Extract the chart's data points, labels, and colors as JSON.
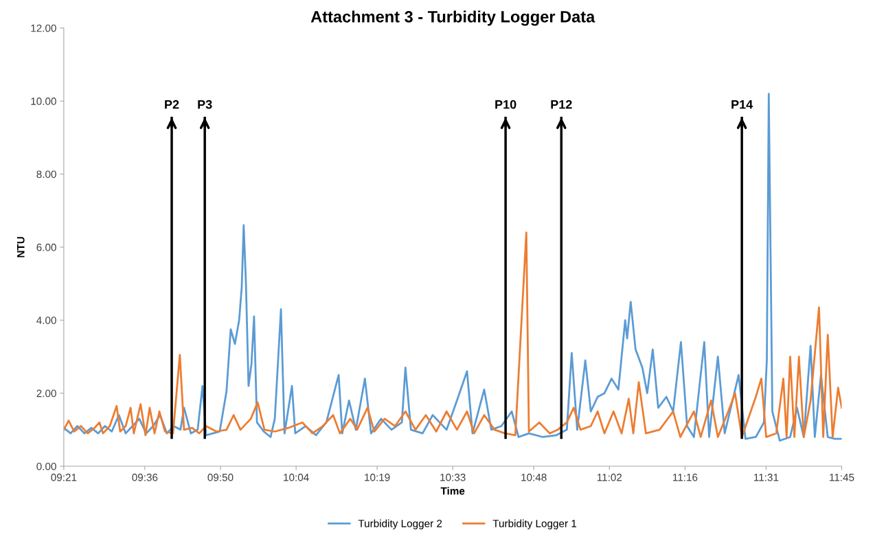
{
  "chart_data": {
    "type": "line",
    "title": "Attachment 3 - Turbidity Logger Data",
    "xlabel": "Time",
    "ylabel": "NTU",
    "xlim": [
      9.35,
      11.75
    ],
    "xticks": [
      {
        "value": 9.35,
        "label": "09:21"
      },
      {
        "value": 9.6,
        "label": "09:36"
      },
      {
        "value": 9.8333,
        "label": "09:50"
      },
      {
        "value": 10.0667,
        "label": "10:04"
      },
      {
        "value": 10.3167,
        "label": "10:19"
      },
      {
        "value": 10.55,
        "label": "10:33"
      },
      {
        "value": 10.8,
        "label": "10:48"
      },
      {
        "value": 11.0333,
        "label": "11:02"
      },
      {
        "value": 11.2667,
        "label": "11:16"
      },
      {
        "value": 11.5167,
        "label": "11:31"
      },
      {
        "value": 11.75,
        "label": "11:45"
      }
    ],
    "ylim": [
      0,
      12
    ],
    "yticks": [
      {
        "value": 0,
        "label": "0.00"
      },
      {
        "value": 2,
        "label": "2.00"
      },
      {
        "value": 4,
        "label": "4.00"
      },
      {
        "value": 6,
        "label": "6.00"
      },
      {
        "value": 8,
        "label": "8.00"
      },
      {
        "value": 10,
        "label": "10.00"
      },
      {
        "value": 12,
        "label": "12.00"
      }
    ],
    "grid": false,
    "legend": "bottom",
    "marker": "none",
    "line_style": "solid",
    "ref_lines": [
      {
        "axis": "x",
        "value": 9.683,
        "label": "P2",
        "color": "#000000"
      },
      {
        "axis": "x",
        "value": 9.785,
        "label": "P3",
        "color": "#000000"
      },
      {
        "axis": "x",
        "value": 10.713,
        "label": "P10",
        "color": "#000000"
      },
      {
        "axis": "x",
        "value": 10.885,
        "label": "P12",
        "color": "#000000"
      },
      {
        "axis": "x",
        "value": 11.442,
        "label": "P14",
        "color": "#000000"
      }
    ],
    "series": [
      {
        "name": "Turbidity Logger 2",
        "color": "#5b9bd5",
        "x": [
          9.35,
          9.371,
          9.392,
          9.414,
          9.435,
          9.456,
          9.477,
          9.498,
          9.52,
          9.541,
          9.562,
          9.583,
          9.604,
          9.626,
          9.647,
          9.668,
          9.689,
          9.71,
          9.721,
          9.742,
          9.763,
          9.778,
          9.789,
          9.81,
          9.831,
          9.852,
          9.865,
          9.878,
          9.891,
          9.899,
          9.905,
          9.912,
          9.92,
          9.929,
          9.937,
          9.946,
          9.967,
          9.988,
          10.001,
          10.02,
          10.031,
          10.054,
          10.064,
          10.096,
          10.128,
          10.16,
          10.198,
          10.209,
          10.23,
          10.251,
          10.279,
          10.298,
          10.329,
          10.361,
          10.393,
          10.404,
          10.421,
          10.457,
          10.488,
          10.531,
          10.563,
          10.594,
          10.611,
          10.647,
          10.669,
          10.7,
          10.732,
          10.753,
          10.785,
          10.828,
          10.87,
          10.902,
          10.917,
          10.934,
          10.959,
          10.976,
          10.997,
          11.018,
          11.04,
          11.061,
          11.071,
          11.082,
          11.088,
          11.099,
          11.114,
          11.135,
          11.15,
          11.167,
          11.184,
          11.209,
          11.23,
          11.254,
          11.273,
          11.294,
          11.326,
          11.341,
          11.368,
          11.389,
          11.432,
          11.453,
          11.485,
          11.51,
          11.519,
          11.525,
          11.536,
          11.559,
          11.591,
          11.612,
          11.633,
          11.654,
          11.667,
          11.686,
          11.707,
          11.729,
          11.75
        ],
        "values": [
          1.05,
          0.9,
          1.1,
          0.9,
          1.05,
          0.9,
          1.1,
          0.95,
          1.4,
          0.9,
          1.1,
          1.3,
          0.9,
          1.1,
          1.4,
          0.9,
          1.1,
          1.0,
          1.6,
          0.9,
          1.0,
          2.2,
          0.85,
          0.9,
          0.95,
          2.05,
          3.75,
          3.35,
          4.0,
          4.9,
          6.6,
          5.0,
          2.2,
          2.8,
          4.1,
          1.2,
          0.95,
          0.8,
          1.3,
          4.3,
          0.9,
          2.2,
          0.9,
          1.1,
          0.85,
          1.2,
          2.5,
          0.9,
          1.8,
          1.0,
          2.4,
          0.9,
          1.3,
          1.0,
          1.2,
          2.7,
          1.0,
          0.9,
          1.4,
          1.0,
          1.8,
          2.6,
          0.9,
          2.1,
          1.0,
          1.1,
          1.5,
          0.8,
          0.9,
          0.8,
          0.85,
          1.0,
          3.1,
          1.0,
          2.9,
          1.5,
          1.9,
          2.0,
          2.4,
          2.1,
          3.0,
          4.0,
          3.5,
          4.5,
          3.2,
          2.7,
          2.0,
          3.2,
          1.6,
          1.9,
          1.5,
          3.4,
          1.1,
          0.8,
          3.4,
          0.8,
          3.0,
          0.9,
          2.5,
          0.75,
          0.8,
          1.2,
          2.9,
          10.2,
          1.5,
          0.7,
          0.8,
          1.6,
          0.8,
          3.3,
          0.8,
          2.5,
          0.8,
          0.75,
          0.75
        ]
      },
      {
        "name": "Turbidity Logger 1",
        "color": "#ed7d31",
        "x": [
          9.35,
          9.365,
          9.382,
          9.403,
          9.424,
          9.445,
          9.46,
          9.471,
          9.492,
          9.513,
          9.524,
          9.541,
          9.556,
          9.566,
          9.587,
          9.602,
          9.615,
          9.63,
          9.645,
          9.662,
          9.687,
          9.708,
          9.721,
          9.746,
          9.768,
          9.789,
          9.821,
          9.852,
          9.874,
          9.895,
          9.927,
          9.948,
          9.969,
          10.001,
          10.043,
          10.086,
          10.117,
          10.149,
          10.181,
          10.202,
          10.234,
          10.255,
          10.287,
          10.308,
          10.34,
          10.372,
          10.404,
          10.435,
          10.467,
          10.499,
          10.531,
          10.563,
          10.594,
          10.616,
          10.647,
          10.679,
          10.711,
          10.743,
          10.777,
          10.785,
          10.817,
          10.849,
          10.874,
          10.902,
          10.923,
          10.944,
          10.976,
          10.997,
          11.018,
          11.046,
          11.071,
          11.093,
          11.107,
          11.124,
          11.146,
          11.188,
          11.23,
          11.252,
          11.294,
          11.315,
          11.347,
          11.368,
          11.4,
          11.421,
          11.442,
          11.485,
          11.502,
          11.517,
          11.548,
          11.57,
          11.58,
          11.591,
          11.604,
          11.618,
          11.633,
          11.654,
          11.68,
          11.693,
          11.707,
          11.722,
          11.739,
          11.75
        ],
        "values": [
          1.0,
          1.25,
          0.95,
          1.1,
          0.9,
          1.05,
          1.2,
          0.9,
          1.1,
          1.65,
          0.95,
          1.1,
          1.6,
          0.9,
          1.7,
          0.85,
          1.6,
          0.9,
          1.5,
          0.95,
          0.9,
          3.05,
          1.0,
          1.05,
          0.9,
          1.1,
          0.95,
          1.0,
          1.4,
          1.0,
          1.3,
          1.75,
          1.0,
          0.95,
          1.05,
          1.2,
          0.9,
          1.1,
          1.4,
          0.9,
          1.3,
          1.0,
          1.6,
          0.95,
          1.3,
          1.1,
          1.5,
          1.0,
          1.4,
          0.95,
          1.5,
          1.0,
          1.5,
          0.9,
          1.4,
          1.0,
          0.9,
          0.85,
          6.4,
          0.95,
          1.2,
          0.9,
          1.0,
          1.2,
          1.6,
          1.0,
          1.1,
          1.5,
          0.9,
          1.5,
          0.9,
          1.85,
          0.9,
          2.3,
          0.9,
          1.0,
          1.5,
          0.8,
          1.5,
          0.8,
          1.8,
          0.8,
          1.5,
          2.0,
          0.8,
          1.9,
          2.4,
          0.8,
          0.9,
          2.4,
          0.8,
          3.0,
          0.8,
          3.0,
          0.8,
          1.8,
          4.35,
          0.8,
          3.6,
          0.8,
          2.15,
          1.6
        ]
      }
    ]
  }
}
